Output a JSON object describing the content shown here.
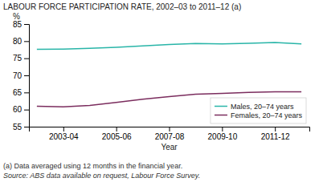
{
  "chart_data": {
    "type": "line",
    "title": "LABOUR FORCE PARTICIPATION RATE, 2002–03 to 2011–12 (a)",
    "xlabel": "Year",
    "ylabel": "%",
    "categories": [
      null,
      "2003-04",
      null,
      "2005-06",
      null,
      "2007-08",
      null,
      "2009-10",
      null,
      "2011-12",
      null
    ],
    "series": [
      {
        "name": "Males, 20–74 years",
        "color": "#29B5A8",
        "values": [
          77.6,
          77.7,
          77.9,
          78.2,
          78.6,
          79.0,
          79.3,
          79.2,
          79.4,
          79.6,
          79.2
        ]
      },
      {
        "name": "Females, 20–74 years",
        "color": "#7B2D5E",
        "values": [
          61.0,
          60.8,
          61.2,
          62.1,
          63.0,
          63.8,
          64.5,
          64.7,
          65.0,
          65.2,
          65.2
        ]
      }
    ],
    "ylim": [
      55,
      85
    ],
    "yticks": [
      55,
      60,
      65,
      70,
      75,
      80,
      85
    ],
    "grid": false,
    "legend": "lower right",
    "annotations": [
      "(a) Data averaged using 12 months in the financial year.",
      "Source: ABS data available on request, ",
      "Labour Force Survey."
    ]
  }
}
